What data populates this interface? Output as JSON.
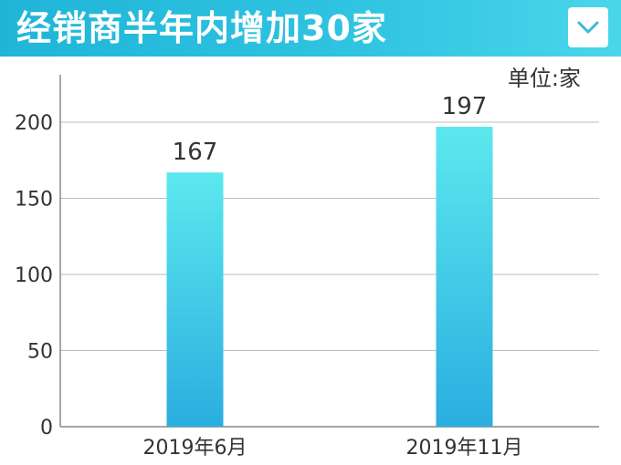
{
  "banner": {
    "title": "经销商半年内增加30家",
    "toggle_icon": "chevron-down-icon"
  },
  "colors": {
    "banner_start": "#20b5d8",
    "banner_end": "#4ad6ea",
    "bar_top": "#5ce8ee",
    "bar_bottom": "#2aaee0"
  },
  "chart_data": {
    "type": "bar",
    "unit_label": "单位:家",
    "categories": [
      "2019年6月",
      "2019年11月"
    ],
    "values": [
      167,
      197
    ],
    "value_labels": [
      "167",
      "197"
    ],
    "yticks": [
      "0",
      "50",
      "100",
      "150",
      "200"
    ],
    "ylim": [
      0,
      240
    ],
    "grid": true,
    "legend": "none"
  }
}
